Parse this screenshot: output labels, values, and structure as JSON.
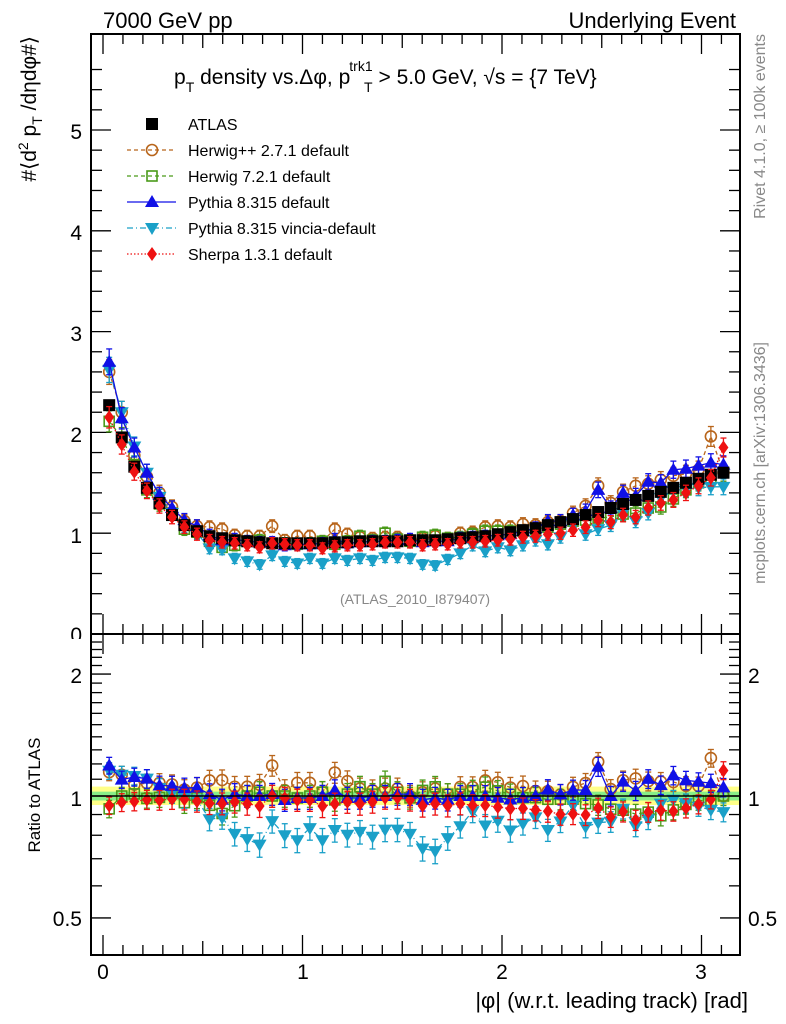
{
  "header": {
    "left": "7000 GeV pp",
    "right": "Underlying Event"
  },
  "side": {
    "rivet": "Rivet 4.1.0, ≥ 100k events",
    "mcplots": "mcplots.cern.ch [arXiv:1306.3436]"
  },
  "chart_data": [
    {
      "type": "scatter",
      "panel": "main",
      "title": "p_T density vs.Δφ, p_T^trk1 > 5.0 GeV, √s = {7 TeV}",
      "title_parts": {
        "p": "p",
        "T": "T",
        "mid": " density vs.Δφ, p",
        "sup": "trk1",
        "rest": " > 5.0 GeV, ",
        "sqrt": "√s",
        "tail": " = {7 TeV}"
      },
      "ylabel": "#⟨d² p_T /dηdφ#⟩",
      "ylabel_parts": {
        "a": "#⟨d",
        "sup": "2",
        "b": " p",
        "sub": "T",
        "c": " /dηdφ#⟩"
      },
      "xlabel": "",
      "xlim": [
        0,
        3.1416
      ],
      "ylim": [
        0,
        6
      ],
      "yticks": [
        0,
        1,
        2,
        3,
        4,
        5
      ],
      "yticklabels": [
        "0",
        "1",
        "2",
        "3",
        "4",
        "5"
      ],
      "watermark": "(ATLAS_2010_I879407)",
      "legend_position": "top-left",
      "legend": [
        "ATLAS",
        "Herwig++ 2.7.1 default",
        "Herwig 7.2.1 default",
        "Pythia 8.315 default",
        "Pythia 8.315 vincia-default",
        "Sherpa 1.3.1 default"
      ],
      "n_bins": 50,
      "x": [
        0.031,
        0.094,
        0.157,
        0.22,
        0.283,
        0.346,
        0.408,
        0.471,
        0.534,
        0.597,
        0.66,
        0.723,
        0.785,
        0.848,
        0.911,
        0.974,
        1.037,
        1.1,
        1.162,
        1.225,
        1.288,
        1.351,
        1.414,
        1.476,
        1.539,
        1.602,
        1.665,
        1.728,
        1.791,
        1.853,
        1.916,
        1.979,
        2.042,
        2.105,
        2.168,
        2.23,
        2.293,
        2.356,
        2.419,
        2.482,
        2.545,
        2.607,
        2.67,
        2.733,
        2.796,
        2.859,
        2.922,
        2.985,
        3.047,
        3.11
      ],
      "series": [
        {
          "name": "ATLAS",
          "color": "#000000",
          "marker": "square",
          "line": "none",
          "values": [
            2.27,
            1.95,
            1.66,
            1.45,
            1.3,
            1.18,
            1.08,
            1.02,
            0.97,
            0.95,
            0.93,
            0.92,
            0.91,
            0.9,
            0.9,
            0.9,
            0.9,
            0.9,
            0.91,
            0.91,
            0.92,
            0.92,
            0.92,
            0.92,
            0.93,
            0.93,
            0.93,
            0.94,
            0.95,
            0.96,
            0.97,
            0.99,
            1.01,
            1.03,
            1.05,
            1.08,
            1.11,
            1.14,
            1.18,
            1.21,
            1.25,
            1.29,
            1.33,
            1.37,
            1.41,
            1.45,
            1.5,
            1.54,
            1.58,
            1.6
          ]
        },
        {
          "name": "Herwig++ 2.7.1 default",
          "color": "#b8651b",
          "marker": "open-circle",
          "line": "dashed",
          "values": [
            2.6,
            2.2,
            1.77,
            1.56,
            1.4,
            1.26,
            1.12,
            1.07,
            1.06,
            1.04,
            0.98,
            0.97,
            0.97,
            1.07,
            0.93,
            0.97,
            0.97,
            0.92,
            1.04,
            0.99,
            0.96,
            0.95,
            0.96,
            0.96,
            0.93,
            0.95,
            0.97,
            0.95,
            1.0,
            1.01,
            1.06,
            1.07,
            1.06,
            1.09,
            1.08,
            1.11,
            1.12,
            1.2,
            1.27,
            1.47,
            1.3,
            1.41,
            1.47,
            1.49,
            1.53,
            1.57,
            1.59,
            1.63,
            1.96,
            1.6
          ]
        },
        {
          "name": "Herwig 7.2.1 default",
          "color": "#4a9a19",
          "marker": "open-square",
          "line": "dashed",
          "values": [
            2.11,
            1.95,
            1.68,
            1.43,
            1.29,
            1.2,
            1.04,
            1.01,
            0.92,
            0.86,
            0.88,
            0.92,
            0.93,
            0.9,
            0.9,
            0.89,
            0.9,
            0.92,
            0.89,
            0.92,
            0.97,
            0.93,
            1.0,
            0.94,
            0.92,
            0.96,
            0.98,
            0.95,
            0.96,
            0.99,
            1.02,
            1.02,
            1.02,
            1.02,
            1.04,
            1.06,
            1.09,
            1.12,
            1.13,
            1.15,
            1.16,
            1.19,
            1.2,
            1.25,
            1.26,
            1.34,
            1.43,
            1.5,
            1.54,
            1.6
          ]
        },
        {
          "name": "Pythia 8.315 default",
          "color": "#1010e6",
          "marker": "triangle-up",
          "line": "solid",
          "values": [
            2.7,
            2.14,
            1.85,
            1.6,
            1.38,
            1.25,
            1.13,
            1.07,
            0.98,
            0.93,
            0.94,
            0.92,
            0.91,
            0.91,
            0.88,
            0.89,
            0.89,
            0.9,
            0.94,
            0.9,
            0.91,
            0.92,
            0.92,
            0.93,
            0.94,
            0.91,
            0.92,
            0.92,
            0.95,
            0.96,
            0.97,
            0.98,
            0.99,
            1.02,
            1.05,
            1.12,
            1.12,
            1.18,
            1.22,
            1.43,
            1.25,
            1.4,
            1.37,
            1.51,
            1.5,
            1.63,
            1.64,
            1.67,
            1.7,
            1.68
          ]
        },
        {
          "name": "Pythia 8.315 vincia-default",
          "color": "#1aa0c8",
          "marker": "triangle-down",
          "line": "dashdot",
          "values": [
            2.62,
            2.2,
            1.86,
            1.6,
            1.36,
            1.2,
            1.07,
            1.0,
            0.85,
            0.84,
            0.75,
            0.72,
            0.69,
            0.78,
            0.72,
            0.7,
            0.75,
            0.7,
            0.75,
            0.73,
            0.75,
            0.73,
            0.76,
            0.76,
            0.75,
            0.69,
            0.68,
            0.74,
            0.8,
            0.88,
            0.82,
            0.86,
            0.83,
            0.88,
            0.93,
            0.89,
            0.96,
            1.08,
            0.99,
            1.04,
            1.08,
            1.2,
            1.12,
            1.2,
            1.35,
            1.42,
            1.44,
            1.45,
            1.46,
            1.46
          ]
        },
        {
          "name": "Sherpa 1.3.1 default",
          "color": "#ee1111",
          "marker": "diamond",
          "line": "dotted",
          "values": [
            2.15,
            1.88,
            1.61,
            1.42,
            1.27,
            1.16,
            1.06,
            0.99,
            0.93,
            0.91,
            0.9,
            0.88,
            0.86,
            0.9,
            0.89,
            0.88,
            0.88,
            0.85,
            0.87,
            0.88,
            0.88,
            0.89,
            0.91,
            0.91,
            0.91,
            0.88,
            0.89,
            0.89,
            0.91,
            0.91,
            0.92,
            0.93,
            0.94,
            0.96,
            0.97,
            0.99,
            1.0,
            1.03,
            1.06,
            1.13,
            1.11,
            1.18,
            1.16,
            1.25,
            1.3,
            1.33,
            1.4,
            1.47,
            1.55,
            1.85
          ]
        }
      ]
    },
    {
      "type": "scatter",
      "panel": "ratio",
      "ylabel": "Ratio to ATLAS",
      "xlabel": "|φ| (w.r.t. leading track) [rad]",
      "xlim": [
        0,
        3.1416
      ],
      "xticks": [
        0,
        1,
        2,
        3
      ],
      "xticklabels": [
        "0",
        "1",
        "2",
        "3"
      ],
      "yscale": "log",
      "ylim": [
        0.4,
        2.45
      ],
      "yticks": [
        0.5,
        1,
        2
      ],
      "yticklabels": [
        "0.5",
        "1",
        "2"
      ],
      "bands": [
        {
          "name": "total uncertainty",
          "color": "#ffff88",
          "range": [
            0.95,
            1.055
          ]
        },
        {
          "name": "stat uncertainty",
          "color": "#88ee88",
          "range": [
            0.975,
            1.025
          ]
        }
      ],
      "reference_line": 1
    }
  ]
}
